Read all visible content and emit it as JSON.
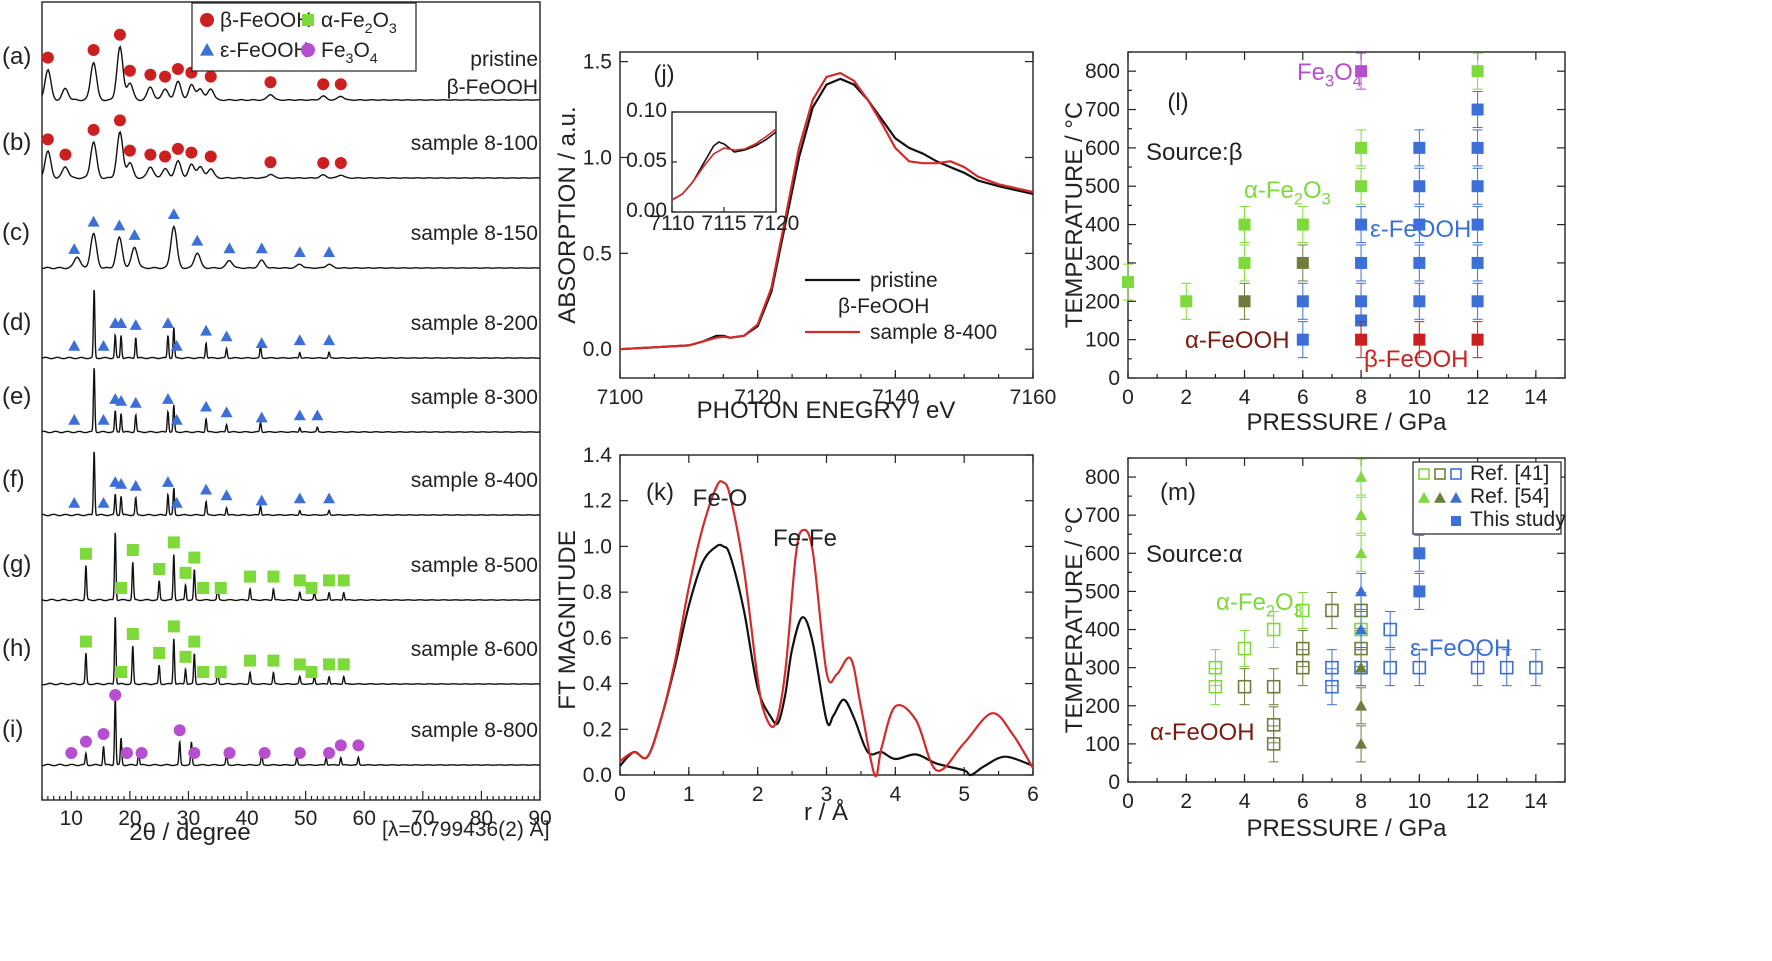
{
  "colors": {
    "beta": "#cc1f1f",
    "eps": "#3c6fd8",
    "alpha_fe2o3": "#7ed93a",
    "alpha_feooh": "#7a1b10",
    "fe3o4": "#b54fd0",
    "olive": "#6f7d3c",
    "line_black": "#111111",
    "line_red": "#d42a2a"
  },
  "legend": {
    "beta": "β-FeOOH",
    "alpha_fe2o3": "α-Fe2O3",
    "eps": "ε-FeOOH",
    "fe3o4": "Fe3O4"
  },
  "xrd": {
    "xlabel": "2θ / degree",
    "wavelength": "[λ=0.799436(2) Å]",
    "xticks": [
      "10",
      "20",
      "30",
      "40",
      "50",
      "60",
      "70",
      "80",
      "90"
    ],
    "panels": [
      {
        "label": "(a)",
        "sample": "pristine",
        "sample2": "β-FeOOH"
      },
      {
        "label": "(b)",
        "sample": "sample 8-100"
      },
      {
        "label": "(c)",
        "sample": "sample 8-150"
      },
      {
        "label": "(d)",
        "sample": "sample 8-200"
      },
      {
        "label": "(e)",
        "sample": "sample 8-300"
      },
      {
        "label": "(f)",
        "sample": "sample 8-400"
      },
      {
        "label": "(g)",
        "sample": "sample 8-500"
      },
      {
        "label": "(h)",
        "sample": "sample 8-600"
      },
      {
        "label": "(i)",
        "sample": "sample 8-800"
      }
    ]
  },
  "chart_data": [
    {
      "type": "line",
      "panel": "(j)",
      "xlabel": "PHOTON ENEGRY / eV",
      "ylabel": "ABSORPTION / a.u.",
      "xlim": [
        7100,
        7160
      ],
      "ylim": [
        -0.15,
        1.55
      ],
      "xticks": [
        7100,
        7120,
        7140,
        7160
      ],
      "yticks": [
        "0.0",
        "0.5",
        "1.0",
        "1.5"
      ],
      "series": [
        {
          "name": "pristine β-FeOOH",
          "color": "#111111",
          "x": [
            7100,
            7105,
            7110,
            7112,
            7114,
            7115,
            7116,
            7118,
            7120,
            7122,
            7124,
            7126,
            7128,
            7130,
            7132,
            7134,
            7136,
            7138,
            7140,
            7142,
            7144,
            7146,
            7148,
            7150,
            7152,
            7155,
            7160
          ],
          "y": [
            0.0,
            0.01,
            0.02,
            0.04,
            0.07,
            0.07,
            0.06,
            0.07,
            0.12,
            0.3,
            0.65,
            1.0,
            1.26,
            1.38,
            1.41,
            1.38,
            1.3,
            1.2,
            1.1,
            1.05,
            1.02,
            0.98,
            0.95,
            0.92,
            0.88,
            0.85,
            0.81
          ]
        },
        {
          "name": "sample 8-400",
          "color": "#d42a2a",
          "x": [
            7100,
            7105,
            7110,
            7112,
            7114,
            7115,
            7116,
            7118,
            7120,
            7122,
            7124,
            7126,
            7128,
            7130,
            7132,
            7134,
            7136,
            7138,
            7140,
            7142,
            7144,
            7146,
            7148,
            7150,
            7152,
            7155,
            7160
          ],
          "y": [
            0.0,
            0.01,
            0.02,
            0.04,
            0.06,
            0.065,
            0.06,
            0.07,
            0.13,
            0.32,
            0.68,
            1.05,
            1.3,
            1.42,
            1.44,
            1.4,
            1.3,
            1.18,
            1.05,
            0.98,
            0.97,
            0.97,
            0.98,
            0.95,
            0.9,
            0.86,
            0.82
          ]
        }
      ],
      "legend": [
        "pristine",
        "β-FeOOH",
        "sample 8-400"
      ],
      "inset": {
        "xlim": [
          7110,
          7120
        ],
        "ylim": [
          0,
          0.1
        ],
        "xticks": [
          "7110",
          "7115",
          "7120"
        ],
        "yticks": [
          "0.00",
          "0.05",
          "0.10"
        ],
        "black": [
          [
            7110,
            0.012
          ],
          [
            7111,
            0.018
          ],
          [
            7112,
            0.03
          ],
          [
            7113,
            0.048
          ],
          [
            7114,
            0.066
          ],
          [
            7114.5,
            0.07
          ],
          [
            7115,
            0.068
          ],
          [
            7116,
            0.06
          ],
          [
            7117,
            0.062
          ],
          [
            7118,
            0.066
          ],
          [
            7119,
            0.072
          ],
          [
            7120,
            0.08
          ]
        ],
        "red": [
          [
            7110,
            0.012
          ],
          [
            7111,
            0.018
          ],
          [
            7112,
            0.03
          ],
          [
            7113,
            0.045
          ],
          [
            7114,
            0.058
          ],
          [
            7115,
            0.064
          ],
          [
            7116,
            0.062
          ],
          [
            7117,
            0.063
          ],
          [
            7118,
            0.068
          ],
          [
            7119,
            0.075
          ],
          [
            7120,
            0.083
          ]
        ]
      }
    },
    {
      "type": "line",
      "panel": "(k)",
      "xlabel": "r / Å",
      "ylabel": "FT MAGNITUDE",
      "xlim": [
        0,
        6
      ],
      "ylim": [
        0,
        1.4
      ],
      "xticks": [
        0,
        1,
        2,
        3,
        4,
        5,
        6
      ],
      "yticks": [
        "0.0",
        "0.2",
        "0.4",
        "0.6",
        "0.8",
        "1.0",
        "1.2",
        "1.4"
      ],
      "annotations": [
        "Fe-O",
        "Fe-Fe"
      ],
      "series": [
        {
          "name": "black",
          "color": "#111111",
          "x": [
            0,
            0.2,
            0.4,
            0.6,
            0.8,
            1.0,
            1.2,
            1.4,
            1.5,
            1.6,
            1.8,
            2.0,
            2.2,
            2.3,
            2.4,
            2.5,
            2.65,
            2.8,
            3.0,
            3.1,
            3.25,
            3.4,
            3.6,
            3.8,
            4.0,
            4.3,
            4.6,
            5.0,
            5.1,
            5.3,
            5.6,
            6.0
          ],
          "y": [
            0.04,
            0.1,
            0.08,
            0.25,
            0.48,
            0.74,
            0.93,
            1.0,
            1.0,
            0.96,
            0.72,
            0.38,
            0.25,
            0.23,
            0.35,
            0.55,
            0.69,
            0.58,
            0.24,
            0.26,
            0.33,
            0.25,
            0.1,
            0.1,
            0.07,
            0.09,
            0.05,
            0.02,
            0.0,
            0.04,
            0.08,
            0.04
          ]
        },
        {
          "name": "red",
          "color": "#d42a2a",
          "x": [
            0,
            0.2,
            0.4,
            0.6,
            0.8,
            1.0,
            1.2,
            1.4,
            1.5,
            1.6,
            1.8,
            2.0,
            2.1,
            2.25,
            2.4,
            2.55,
            2.65,
            2.8,
            3.0,
            3.15,
            3.35,
            3.5,
            3.7,
            3.8,
            4.0,
            4.3,
            4.6,
            5.0,
            5.4,
            5.7,
            6.0
          ],
          "y": [
            0.06,
            0.1,
            0.08,
            0.25,
            0.5,
            0.82,
            1.08,
            1.26,
            1.28,
            1.22,
            0.9,
            0.42,
            0.27,
            0.22,
            0.45,
            0.95,
            1.07,
            0.98,
            0.45,
            0.44,
            0.51,
            0.3,
            0.0,
            0.12,
            0.3,
            0.24,
            0.02,
            0.14,
            0.27,
            0.18,
            0.03
          ]
        }
      ]
    },
    {
      "type": "scatter",
      "panel": "(l)",
      "xlabel": "PRESSURE / GPa",
      "ylabel": "TEMPERATURE / °C",
      "xlim": [
        0,
        15
      ],
      "ylim": [
        0,
        850
      ],
      "xticks": [
        0,
        2,
        4,
        6,
        8,
        10,
        12,
        14
      ],
      "yticks": [
        0,
        100,
        200,
        300,
        400,
        500,
        600,
        700,
        800
      ],
      "annotations": [
        "Source:β",
        "Fe3O4",
        "α-Fe2O3",
        "ε-FeOOH",
        "α-FeOOH",
        "β-FeOOH"
      ],
      "points": [
        {
          "x": 0,
          "y": 250,
          "c": "alpha_fe2o3"
        },
        {
          "x": 2,
          "y": 200,
          "c": "alpha_fe2o3"
        },
        {
          "x": 4,
          "y": 400,
          "c": "alpha_fe2o3"
        },
        {
          "x": 4,
          "y": 300,
          "c": "alpha_fe2o3"
        },
        {
          "x": 4,
          "y": 200,
          "c": "olive"
        },
        {
          "x": 6,
          "y": 400,
          "c": "alpha_fe2o3"
        },
        {
          "x": 6,
          "y": 300,
          "c": "olive"
        },
        {
          "x": 6,
          "y": 200,
          "c": "eps"
        },
        {
          "x": 6,
          "y": 100,
          "c": "eps"
        },
        {
          "x": 8,
          "y": 800,
          "c": "fe3o4"
        },
        {
          "x": 8,
          "y": 600,
          "c": "alpha_fe2o3"
        },
        {
          "x": 8,
          "y": 500,
          "c": "alpha_fe2o3"
        },
        {
          "x": 8,
          "y": 400,
          "c": "eps"
        },
        {
          "x": 8,
          "y": 300,
          "c": "eps"
        },
        {
          "x": 8,
          "y": 200,
          "c": "eps"
        },
        {
          "x": 8,
          "y": 150,
          "c": "eps"
        },
        {
          "x": 8,
          "y": 100,
          "c": "beta"
        },
        {
          "x": 10,
          "y": 600,
          "c": "eps"
        },
        {
          "x": 10,
          "y": 500,
          "c": "eps"
        },
        {
          "x": 10,
          "y": 400,
          "c": "eps"
        },
        {
          "x": 10,
          "y": 300,
          "c": "eps"
        },
        {
          "x": 10,
          "y": 200,
          "c": "eps"
        },
        {
          "x": 10,
          "y": 100,
          "c": "beta"
        },
        {
          "x": 12,
          "y": 800,
          "c": "alpha_fe2o3"
        },
        {
          "x": 12,
          "y": 700,
          "c": "eps"
        },
        {
          "x": 12,
          "y": 600,
          "c": "eps"
        },
        {
          "x": 12,
          "y": 500,
          "c": "eps"
        },
        {
          "x": 12,
          "y": 400,
          "c": "eps"
        },
        {
          "x": 12,
          "y": 300,
          "c": "eps"
        },
        {
          "x": 12,
          "y": 200,
          "c": "eps"
        },
        {
          "x": 12,
          "y": 100,
          "c": "beta"
        }
      ]
    },
    {
      "type": "scatter",
      "panel": "(m)",
      "xlabel": "PRESSURE / GPa",
      "ylabel": "TEMPERATURE / °C",
      "xlim": [
        0,
        15
      ],
      "ylim": [
        0,
        850
      ],
      "xticks": [
        0,
        2,
        4,
        6,
        8,
        10,
        12,
        14
      ],
      "yticks": [
        0,
        100,
        200,
        300,
        400,
        500,
        600,
        700,
        800
      ],
      "annotations": [
        "Source:α",
        "α-Fe2O3",
        "ε-FeOOH",
        "α-FeOOH"
      ],
      "legend": [
        "Ref. [41]",
        "Ref. [54]",
        "This study"
      ],
      "points": [
        {
          "x": 3,
          "y": 300,
          "c": "alpha_fe2o3",
          "m": "os"
        },
        {
          "x": 3,
          "y": 250,
          "c": "alpha_fe2o3",
          "m": "os"
        },
        {
          "x": 4,
          "y": 350,
          "c": "alpha_fe2o3",
          "m": "os"
        },
        {
          "x": 4,
          "y": 250,
          "c": "olive",
          "m": "os"
        },
        {
          "x": 5,
          "y": 400,
          "c": "alpha_fe2o3",
          "m": "os"
        },
        {
          "x": 5,
          "y": 250,
          "c": "olive",
          "m": "os"
        },
        {
          "x": 5,
          "y": 150,
          "c": "olive",
          "m": "os"
        },
        {
          "x": 5,
          "y": 100,
          "c": "olive",
          "m": "os"
        },
        {
          "x": 6,
          "y": 450,
          "c": "alpha_fe2o3",
          "m": "os"
        },
        {
          "x": 6,
          "y": 350,
          "c": "olive",
          "m": "os"
        },
        {
          "x": 6,
          "y": 300,
          "c": "olive",
          "m": "os"
        },
        {
          "x": 7,
          "y": 450,
          "c": "olive",
          "m": "os"
        },
        {
          "x": 7,
          "y": 300,
          "c": "eps",
          "m": "os"
        },
        {
          "x": 7,
          "y": 250,
          "c": "eps",
          "m": "os"
        },
        {
          "x": 8,
          "y": 450,
          "c": "olive",
          "m": "os"
        },
        {
          "x": 8,
          "y": 400,
          "c": "alpha_fe2o3",
          "m": "os"
        },
        {
          "x": 8,
          "y": 350,
          "c": "olive",
          "m": "os"
        },
        {
          "x": 8,
          "y": 300,
          "c": "eps",
          "m": "os"
        },
        {
          "x": 9,
          "y": 400,
          "c": "eps",
          "m": "os"
        },
        {
          "x": 9,
          "y": 300,
          "c": "eps",
          "m": "os"
        },
        {
          "x": 10,
          "y": 300,
          "c": "eps",
          "m": "os"
        },
        {
          "x": 12,
          "y": 300,
          "c": "eps",
          "m": "os"
        },
        {
          "x": 13,
          "y": 300,
          "c": "eps",
          "m": "os"
        },
        {
          "x": 14,
          "y": 300,
          "c": "eps",
          "m": "os"
        },
        {
          "x": 8,
          "y": 800,
          "c": "alpha_fe2o3",
          "m": "t"
        },
        {
          "x": 8,
          "y": 700,
          "c": "alpha_fe2o3",
          "m": "t"
        },
        {
          "x": 8,
          "y": 600,
          "c": "alpha_fe2o3",
          "m": "t"
        },
        {
          "x": 8,
          "y": 500,
          "c": "eps",
          "m": "t"
        },
        {
          "x": 8,
          "y": 400,
          "c": "eps",
          "m": "t"
        },
        {
          "x": 8,
          "y": 300,
          "c": "olive",
          "m": "t"
        },
        {
          "x": 8,
          "y": 200,
          "c": "olive",
          "m": "t"
        },
        {
          "x": 8,
          "y": 100,
          "c": "olive",
          "m": "t"
        },
        {
          "x": 10,
          "y": 600,
          "c": "eps",
          "m": "s"
        },
        {
          "x": 10,
          "y": 500,
          "c": "eps",
          "m": "s"
        }
      ]
    }
  ]
}
